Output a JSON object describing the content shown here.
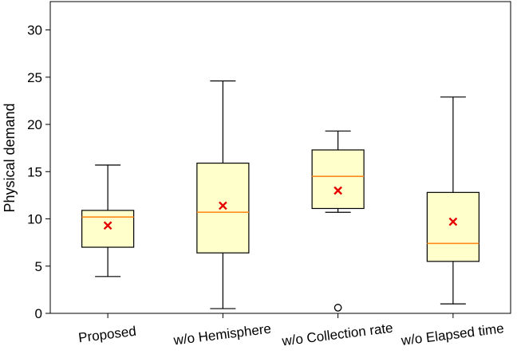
{
  "chart_data": {
    "type": "box",
    "title": "",
    "xlabel": "",
    "ylabel": "Physical demand",
    "ylim": [
      0,
      33
    ],
    "yticks": [
      0,
      5,
      10,
      15,
      20,
      25,
      30
    ],
    "grid": false,
    "categories": [
      "Proposed",
      "w/o Hemisphere",
      "w/o Collection rate",
      "w/o Elapsed time"
    ],
    "boxes": [
      {
        "whisker_low": 3.9,
        "q1": 7.0,
        "median": 10.2,
        "q3": 10.9,
        "whisker_high": 15.7,
        "mean": 9.3,
        "outliers": []
      },
      {
        "whisker_low": 0.5,
        "q1": 6.4,
        "median": 10.7,
        "q3": 15.9,
        "whisker_high": 24.6,
        "mean": 11.4,
        "outliers": []
      },
      {
        "whisker_low": 10.7,
        "q1": 11.1,
        "median": 14.5,
        "q3": 17.3,
        "whisker_high": 19.3,
        "mean": 13.0,
        "outliers": [
          0.6
        ]
      },
      {
        "whisker_low": 1.0,
        "q1": 5.5,
        "median": 7.4,
        "q3": 12.8,
        "whisker_high": 22.9,
        "mean": 9.7,
        "outliers": []
      }
    ],
    "colors": {
      "box_fill": "#ffffcc",
      "box_edge": "#000000",
      "median": "#ff8c1a",
      "mean_marker": "#e60000",
      "outlier": "#000000"
    }
  }
}
